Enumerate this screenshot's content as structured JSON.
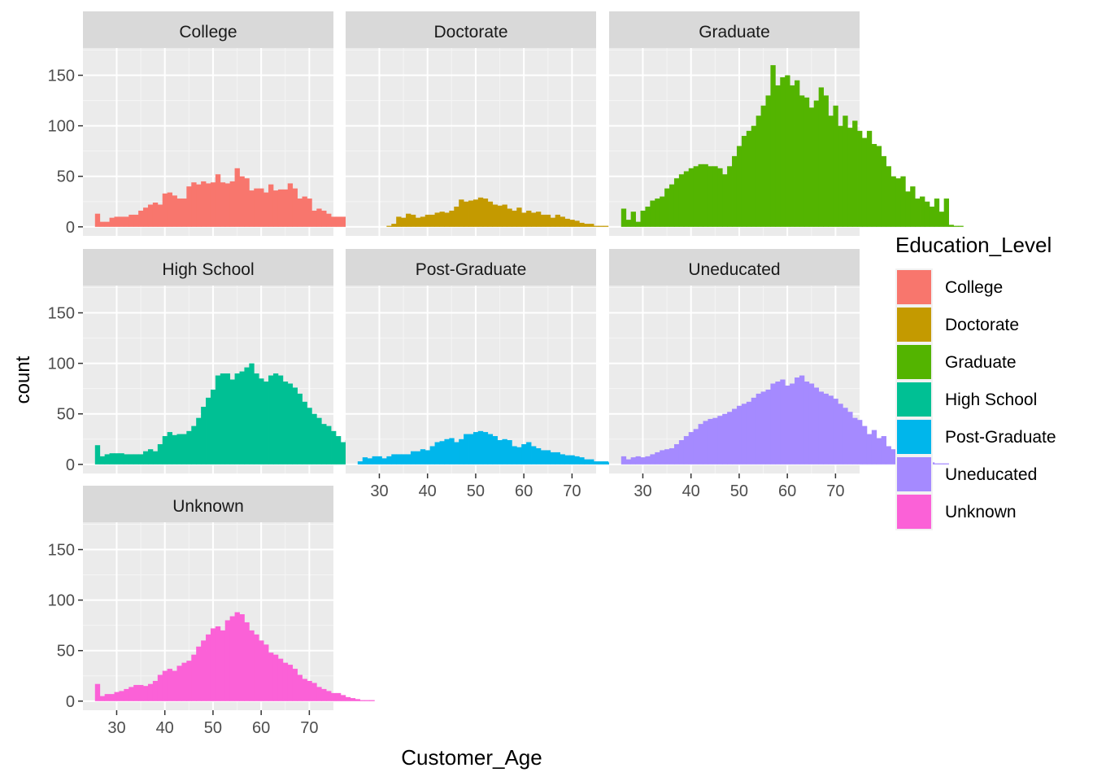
{
  "chart_data": {
    "type": "bar",
    "subtype": "faceted-histogram",
    "xlabel": "Customer_Age",
    "ylabel": "count",
    "xlim": [
      23,
      75
    ],
    "ylim": [
      -9,
      177
    ],
    "x_ticks": [
      30,
      40,
      50,
      60,
      70
    ],
    "y_ticks": [
      0,
      50,
      100,
      150
    ],
    "bin_width": 1,
    "bin_start": 26,
    "grid": true,
    "legend": {
      "title": "Education_Level",
      "position": "right",
      "entries": [
        "College",
        "Doctorate",
        "Graduate",
        "High School",
        "Post-Graduate",
        "Uneducated",
        "Unknown"
      ]
    },
    "panels": [
      {
        "name": "College",
        "color": "#F8766D",
        "values": [
          13,
          5,
          5,
          9,
          10,
          10,
          10,
          12,
          12,
          16,
          19,
          22,
          24,
          22,
          33,
          34,
          31,
          28,
          28,
          40,
          44,
          42,
          45,
          43,
          44,
          52,
          44,
          43,
          45,
          58,
          50,
          48,
          36,
          38,
          38,
          34,
          42,
          36,
          37,
          37,
          43,
          38,
          28,
          30,
          28,
          16,
          18,
          16,
          13,
          10,
          10,
          10,
          10,
          10,
          10,
          10,
          10,
          7,
          6,
          4,
          5,
          4,
          4,
          3,
          2,
          2,
          2,
          2,
          2,
          1,
          1,
          1
        ],
        "note": ""
      },
      {
        "name": "Doctorate",
        "color": "#C49A00",
        "values": [
          0,
          0,
          0,
          0,
          0,
          0,
          1,
          3,
          10,
          9,
          13,
          12,
          9,
          10,
          12,
          12,
          14,
          15,
          14,
          16,
          20,
          27,
          25,
          26,
          27,
          29,
          28,
          25,
          22,
          21,
          22,
          18,
          16,
          19,
          14,
          16,
          14,
          15,
          12,
          12,
          9,
          12,
          10,
          8,
          7,
          6,
          4,
          3,
          3,
          1,
          1,
          1,
          0,
          0,
          0,
          0,
          0,
          0,
          0,
          0,
          0,
          0,
          0,
          0,
          0,
          0,
          0,
          0,
          0,
          0,
          0,
          0
        ]
      },
      {
        "name": "Graduate",
        "color": "#53B400",
        "values": [
          18,
          7,
          15,
          5,
          16,
          20,
          26,
          28,
          30,
          38,
          42,
          48,
          52,
          55,
          58,
          60,
          62,
          62,
          60,
          60,
          58,
          52,
          60,
          70,
          80,
          90,
          95,
          100,
          110,
          120,
          130,
          160,
          140,
          148,
          150,
          140,
          145,
          130,
          128,
          118,
          125,
          138,
          130,
          110,
          120,
          100,
          110,
          98,
          105,
          95,
          88,
          95,
          82,
          80,
          70,
          60,
          50,
          48,
          50,
          35,
          40,
          28,
          30,
          25,
          20,
          28,
          15,
          28,
          2,
          1,
          1,
          0
        ]
      },
      {
        "name": "High School",
        "color": "#00C094",
        "values": [
          19,
          8,
          10,
          11,
          11,
          11,
          10,
          10,
          10,
          10,
          13,
          15,
          13,
          20,
          28,
          32,
          29,
          30,
          30,
          33,
          38,
          46,
          57,
          66,
          74,
          88,
          90,
          90,
          84,
          90,
          92,
          96,
          100,
          90,
          85,
          82,
          88,
          90,
          88,
          82,
          80,
          76,
          70,
          62,
          56,
          50,
          46,
          40,
          38,
          33,
          28,
          22,
          24,
          20,
          18,
          15,
          10,
          8,
          7,
          8,
          7,
          26,
          5,
          3,
          3,
          2,
          2,
          2,
          2,
          3,
          3,
          2
        ]
      },
      {
        "name": "Post-Graduate",
        "color": "#00B6EB",
        "values": [
          3,
          7,
          6,
          8,
          8,
          6,
          8,
          10,
          10,
          10,
          10,
          13,
          13,
          15,
          14,
          18,
          22,
          23,
          25,
          26,
          22,
          25,
          30,
          30,
          32,
          33,
          32,
          30,
          28,
          24,
          25,
          24,
          18,
          17,
          20,
          22,
          18,
          16,
          14,
          14,
          12,
          12,
          10,
          9,
          9,
          8,
          7,
          5,
          5,
          3,
          3,
          3,
          2,
          3,
          3,
          3,
          2,
          1,
          1,
          1,
          1,
          1,
          1,
          1,
          1,
          1,
          1,
          1,
          1,
          1,
          0,
          0
        ]
      },
      {
        "name": "Uneducated",
        "color": "#A58AFF",
        "values": [
          8,
          5,
          7,
          8,
          7,
          8,
          10,
          12,
          14,
          15,
          16,
          20,
          24,
          28,
          32,
          35,
          40,
          43,
          45,
          46,
          48,
          50,
          52,
          55,
          58,
          60,
          62,
          66,
          70,
          72,
          74,
          80,
          82,
          84,
          78,
          80,
          86,
          88,
          82,
          80,
          76,
          72,
          70,
          68,
          65,
          60,
          56,
          52,
          46,
          44,
          38,
          30,
          34,
          26,
          28,
          18,
          15,
          14,
          12,
          14,
          8,
          6,
          4,
          3,
          2,
          1,
          1,
          1,
          0,
          0,
          0,
          0
        ]
      },
      {
        "name": "Unknown",
        "color": "#FB61D7",
        "values": [
          17,
          5,
          7,
          7,
          9,
          10,
          12,
          14,
          16,
          16,
          15,
          17,
          20,
          26,
          30,
          32,
          30,
          35,
          38,
          40,
          46,
          54,
          60,
          66,
          72,
          74,
          70,
          80,
          84,
          88,
          86,
          78,
          70,
          66,
          60,
          56,
          48,
          46,
          42,
          38,
          36,
          32,
          26,
          22,
          20,
          18,
          14,
          12,
          10,
          8,
          8,
          6,
          4,
          3,
          2,
          1,
          1,
          1,
          0,
          0,
          0,
          0,
          0,
          0,
          0,
          0,
          0,
          0,
          0,
          0,
          0,
          0
        ]
      }
    ]
  }
}
